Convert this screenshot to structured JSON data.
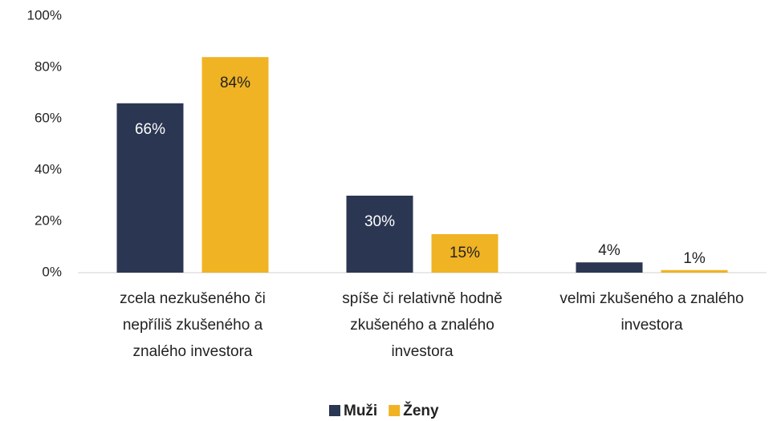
{
  "chart_data": {
    "type": "bar",
    "categories": [
      "zcela nezkušeného či nepříliš zkušeného a znalého investora",
      "spíše či relativně hodně zkušeného a znalého investora",
      "velmi zkušeného a znalého investora"
    ],
    "series": [
      {
        "name": "Muži",
        "color": "#2b3652",
        "values": [
          66,
          30,
          4
        ],
        "value_labels": [
          "66%",
          "30%",
          "4%"
        ]
      },
      {
        "name": "Ženy",
        "color": "#f0b323",
        "values": [
          84,
          15,
          1
        ],
        "value_labels": [
          "84%",
          "15%",
          "1%"
        ]
      }
    ],
    "ylim": [
      0,
      100
    ],
    "yticks": [
      {
        "value": 0,
        "label": "0%"
      },
      {
        "value": 20,
        "label": "20%"
      },
      {
        "value": 40,
        "label": "40%"
      },
      {
        "value": 60,
        "label": "60%"
      },
      {
        "value": 80,
        "label": "80%"
      },
      {
        "value": 100,
        "label": "100%"
      }
    ],
    "grid": false,
    "legend": "bottom"
  }
}
